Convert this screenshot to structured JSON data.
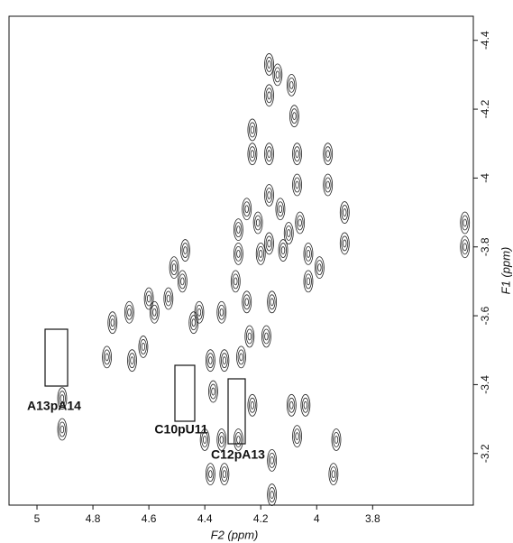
{
  "chart_data": {
    "type": "scatter",
    "xlabel": "F2 (ppm)",
    "ylabel": "F1 (ppm)",
    "xlim": [
      5.1,
      3.44
    ],
    "ylim": [
      -4.47,
      -3.05
    ],
    "xticks": [
      5.0,
      4.8,
      4.6,
      4.4,
      4.2,
      4.0,
      3.8
    ],
    "yticks": [
      -4.4,
      -4.2,
      -4.0,
      -3.8,
      -3.6,
      -3.4,
      -3.2
    ],
    "color": "#222222",
    "annotations": [
      "A13pA14",
      "C10pU11",
      "C12pA13"
    ],
    "x": [
      4.17,
      4.17,
      4.14,
      4.09,
      4.08,
      4.23,
      4.23,
      4.17,
      4.07,
      4.07,
      3.96,
      3.96,
      4.17,
      4.13,
      4.25,
      4.21,
      4.28,
      4.17,
      4.1,
      4.06,
      4.28,
      4.2,
      4.12,
      4.03,
      3.99,
      4.47,
      4.51,
      4.48,
      4.29,
      4.25,
      4.16,
      4.03,
      4.53,
      4.6,
      4.58,
      4.42,
      4.34,
      4.24,
      4.18,
      4.67,
      4.73,
      4.62,
      4.44,
      4.38,
      4.33,
      4.27,
      4.75,
      4.66,
      4.37,
      4.23,
      4.09,
      4.04,
      4.4,
      4.34,
      4.28,
      4.07,
      3.93,
      3.94,
      4.16,
      4.16,
      4.38,
      4.33,
      4.91,
      4.91,
      3.47,
      3.47,
      3.9,
      3.9
    ],
    "values": [
      -4.33,
      -4.24,
      -4.3,
      -4.27,
      -4.18,
      -4.14,
      -4.07,
      -4.07,
      -4.07,
      -3.98,
      -4.07,
      -3.98,
      -3.95,
      -3.91,
      -3.91,
      -3.87,
      -3.85,
      -3.81,
      -3.84,
      -3.87,
      -3.78,
      -3.78,
      -3.79,
      -3.78,
      -3.74,
      -3.79,
      -3.74,
      -3.7,
      -3.7,
      -3.64,
      -3.64,
      -3.7,
      -3.65,
      -3.65,
      -3.61,
      -3.61,
      -3.61,
      -3.54,
      -3.54,
      -3.61,
      -3.58,
      -3.51,
      -3.58,
      -3.47,
      -3.47,
      -3.48,
      -3.48,
      -3.47,
      -3.38,
      -3.34,
      -3.34,
      -3.34,
      -3.24,
      -3.24,
      -3.24,
      -3.25,
      -3.24,
      -3.14,
      -3.18,
      -3.08,
      -3.14,
      -3.14,
      -3.36,
      -3.27,
      -3.87,
      -3.8,
      -3.9,
      -3.81
    ]
  }
}
